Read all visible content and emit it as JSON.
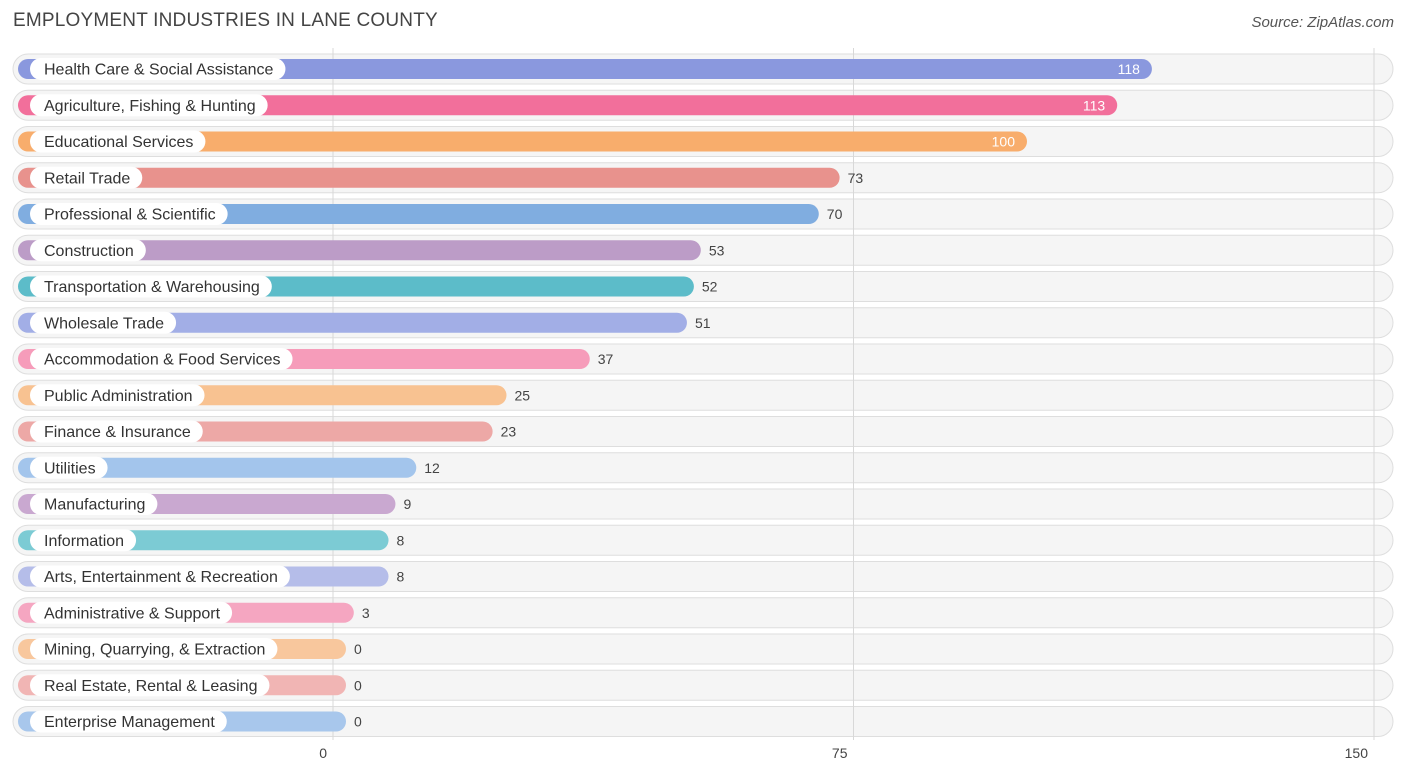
{
  "chart_data": {
    "type": "bar",
    "orientation": "horizontal",
    "title": "EMPLOYMENT INDUSTRIES IN LANE COUNTY",
    "source": "Source: ZipAtlas.com",
    "xlim": [
      0,
      150
    ],
    "ticks": [
      0,
      75,
      150
    ],
    "categories": [
      "Health Care & Social Assistance",
      "Agriculture, Fishing & Hunting",
      "Educational Services",
      "Retail Trade",
      "Professional & Scientific",
      "Construction",
      "Transportation & Warehousing",
      "Wholesale Trade",
      "Accommodation & Food Services",
      "Public Administration",
      "Finance & Insurance",
      "Utilities",
      "Manufacturing",
      "Information",
      "Arts, Entertainment & Recreation",
      "Administrative & Support",
      "Mining, Quarrying, & Extraction",
      "Real Estate, Rental & Leasing",
      "Enterprise Management"
    ],
    "values": [
      118,
      113,
      100,
      73,
      70,
      53,
      52,
      51,
      37,
      25,
      23,
      12,
      9,
      8,
      8,
      3,
      0,
      0,
      0
    ],
    "colors": [
      "#8a98de",
      "#f26f9b",
      "#f8ad6c",
      "#e8928d",
      "#80ade0",
      "#bc9cc7",
      "#5cbcc9",
      "#a2aee6",
      "#f69cba",
      "#f8c291",
      "#eda8a6",
      "#a3c5ec",
      "#c9a8d0",
      "#7ccbd4",
      "#b5bde9",
      "#f5a6c1",
      "#f8c79d",
      "#f1b5b4",
      "#a8c7ec"
    ]
  }
}
